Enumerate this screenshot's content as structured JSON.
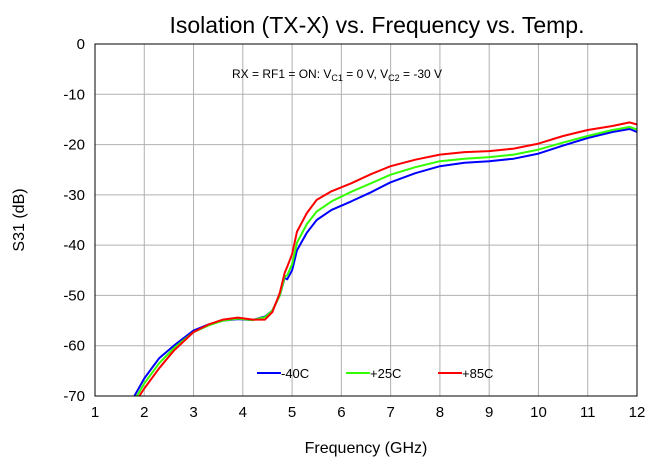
{
  "chart_data": {
    "type": "line",
    "title": "Isolation (TX-X) vs. Frequency vs. Temp.",
    "xlabel": "Frequency (GHz)",
    "ylabel": "S31 (dB)",
    "xlim": [
      1,
      12
    ],
    "ylim": [
      -70,
      0
    ],
    "xticks": [
      "1",
      "2",
      "3",
      "4",
      "5",
      "6",
      "7",
      "8",
      "9",
      "10",
      "11",
      "12"
    ],
    "yticks": [
      "0",
      "-10",
      "-20",
      "-30",
      "-40",
      "-50",
      "-60",
      "-70"
    ],
    "grid": true,
    "legend_position": "bottom-center",
    "annotation": {
      "prefix": "RX = RF1 = ON: V",
      "sub1": "C1",
      "mid": " = 0 V, V",
      "sub2": "C2",
      "suffix": " = -30 V"
    },
    "series": [
      {
        "name": "-40C",
        "color": "#0000ff",
        "x": [
          1.8,
          2.0,
          2.3,
          2.6,
          3.0,
          3.3,
          3.6,
          3.9,
          4.2,
          4.45,
          4.6,
          4.75,
          4.85,
          4.9,
          5.0,
          5.1,
          5.3,
          5.5,
          5.8,
          6.2,
          6.6,
          7.0,
          7.5,
          8.0,
          8.5,
          9.0,
          9.5,
          10.0,
          10.5,
          11.0,
          11.5,
          11.85,
          12.0
        ],
        "y": [
          -70,
          -66.5,
          -62.5,
          -60,
          -57,
          -55.8,
          -55,
          -54.7,
          -54.9,
          -54.2,
          -53,
          -50,
          -46.5,
          -46.8,
          -45,
          -41,
          -37.5,
          -35,
          -33,
          -31.3,
          -29.5,
          -27.5,
          -25.7,
          -24.3,
          -23.6,
          -23.3,
          -22.8,
          -21.8,
          -20.2,
          -18.7,
          -17.5,
          -16.9,
          -17.5
        ]
      },
      {
        "name": "+25C",
        "color": "#33ff00",
        "x": [
          1.85,
          2.0,
          2.3,
          2.6,
          3.0,
          3.3,
          3.6,
          3.9,
          4.2,
          4.45,
          4.6,
          4.75,
          4.85,
          4.9,
          5.0,
          5.1,
          5.3,
          5.5,
          5.8,
          6.2,
          6.6,
          7.0,
          7.5,
          8.0,
          8.5,
          9.0,
          9.5,
          10.0,
          10.5,
          11.0,
          11.5,
          11.85,
          12.0
        ],
        "y": [
          -70,
          -67.5,
          -63.5,
          -60.5,
          -57.3,
          -56,
          -55,
          -54.6,
          -54.9,
          -54.3,
          -53,
          -50,
          -46.3,
          -46,
          -43.8,
          -39.5,
          -35.8,
          -33.3,
          -31.3,
          -29.4,
          -27.7,
          -26,
          -24.5,
          -23.3,
          -22.8,
          -22.5,
          -22,
          -21,
          -19.6,
          -18.3,
          -17.1,
          -16.5,
          -17
        ]
      },
      {
        "name": "+85C",
        "color": "#ff0000",
        "x": [
          1.9,
          2.0,
          2.3,
          2.6,
          3.0,
          3.3,
          3.6,
          3.9,
          4.2,
          4.45,
          4.6,
          4.75,
          4.85,
          4.9,
          5.0,
          5.1,
          5.3,
          5.5,
          5.8,
          6.2,
          6.6,
          7.0,
          7.5,
          8.0,
          8.5,
          9.0,
          9.5,
          10.0,
          10.5,
          11.0,
          11.5,
          11.85,
          12.0
        ],
        "y": [
          -70,
          -68.5,
          -64.5,
          -61,
          -57.3,
          -55.8,
          -54.8,
          -54.4,
          -54.8,
          -54.8,
          -53.3,
          -49.5,
          -45.5,
          -44.3,
          -41.8,
          -37.3,
          -33.6,
          -31,
          -29.3,
          -27.7,
          -25.9,
          -24.3,
          -23,
          -22,
          -21.5,
          -21.3,
          -20.8,
          -19.8,
          -18.3,
          -17.1,
          -16.3,
          -15.6,
          -16
        ]
      }
    ]
  }
}
